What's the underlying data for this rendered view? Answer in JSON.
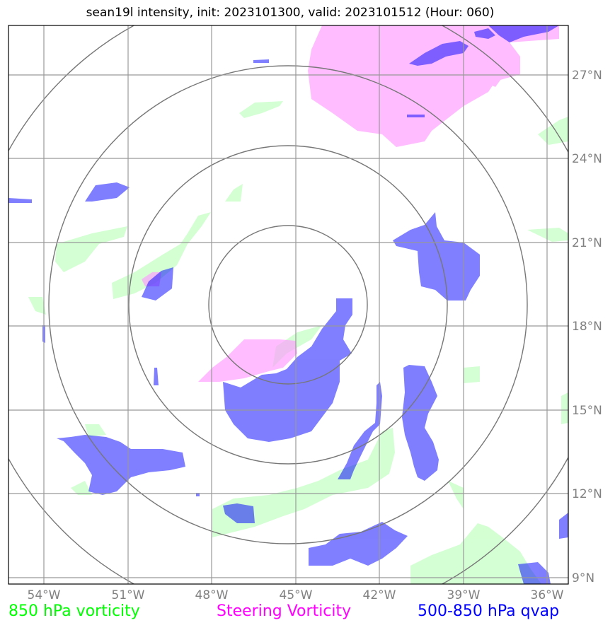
{
  "title": "sean19l intensity, init: 2023101300, valid: 2023101512 (Hour: 060)",
  "legend": {
    "vort850": "850 hPa vorticity",
    "steering": "Steering Vorticity",
    "qvap": "500-850 hPa qvap"
  },
  "colors": {
    "vort850_fill": "#ccffcc",
    "steering_fill": "#ff99ff",
    "qvap_fill": "#0000ff",
    "vort850_text": "#00ff00",
    "steering_text": "#ff00ff",
    "qvap_text": "#0000ff",
    "gridline": "#888888",
    "tick_text": "#808080"
  },
  "map": {
    "lon_ticks": [
      "54°W",
      "51°W",
      "48°W",
      "45°W",
      "42°W",
      "39°W",
      "36°W"
    ],
    "lat_ticks": [
      "27°N",
      "24°N",
      "21°N",
      "18°N",
      "15°N",
      "12°N",
      "9°N"
    ],
    "lon_range_deg": [
      -55.3,
      -35.3
    ],
    "lat_range_deg": [
      8.7,
      28.7
    ],
    "range_rings_center": {
      "lon": -45.0,
      "lat": 18.8
    },
    "range_rings_count": 4
  }
}
